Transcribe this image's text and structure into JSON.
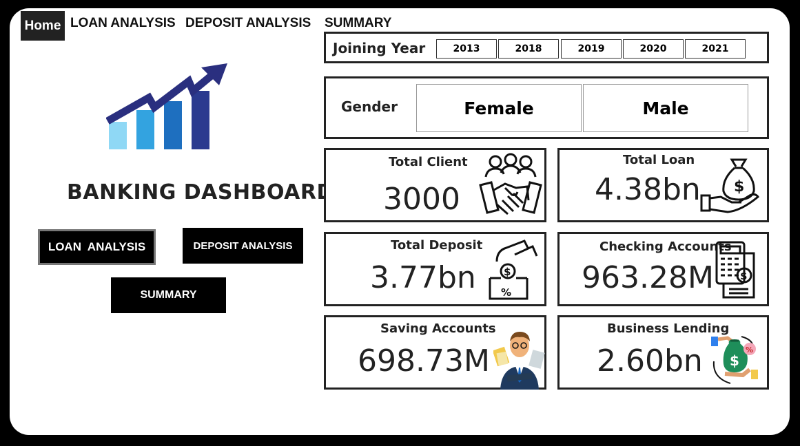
{
  "nav": {
    "home_label": "Home",
    "items": [
      "LOAN ANALYSIS",
      "DEPOSIT ANALYSIS",
      "SUMMARY"
    ]
  },
  "filters": {
    "joining_year_label": "Joining Year",
    "years": [
      "2013",
      "2018",
      "2019",
      "2020",
      "2021"
    ],
    "gender_label": "Gender",
    "genders": [
      "Female",
      "Male"
    ]
  },
  "dashboard": {
    "title": "BANKING DASHBOARD",
    "buttons": {
      "loan": "LOAN  ANALYSIS",
      "deposit": "DEPOSIT ANALYSIS",
      "summary": "SUMMARY"
    }
  },
  "kpis": {
    "total_client": {
      "title": "Total Client",
      "value": "3000",
      "icon": "handshake-icon"
    },
    "total_loan": {
      "title": "Total Loan",
      "value": "4.38bn",
      "icon": "money-bag-hand-icon"
    },
    "total_deposit": {
      "title": "Total Deposit",
      "value": "3.77bn",
      "icon": "deposit-coin-icon"
    },
    "checking_accounts": {
      "title": "Checking Accounts",
      "value": "963.28M",
      "icon": "calculator-receipt-icon"
    },
    "saving_accounts": {
      "title": "Saving Accounts",
      "value": "698.73M",
      "icon": "businessman-icon"
    },
    "business_lending": {
      "title": "Business Lending",
      "value": "2.60bn",
      "icon": "lending-cycle-icon"
    }
  },
  "colors": {
    "background": "#000000",
    "canvas": "#ffffff",
    "logo_dark": "#2a2f7f",
    "logo_blue": "#1f6fbf",
    "logo_light": "#7fd0f0"
  }
}
